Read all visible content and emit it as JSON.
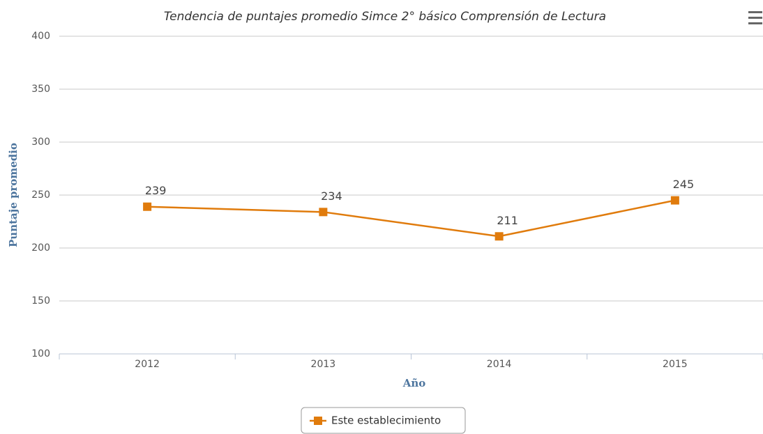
{
  "chart_data": {
    "type": "line",
    "title": "Tendencia de puntajes promedio Simce 2° básico Comprensión de Lectura",
    "y_label": "Puntaje promedio",
    "x_label": "Año",
    "categories": [
      "2012",
      "2013",
      "2014",
      "2015"
    ],
    "series": [
      {
        "name": "Este establecimiento",
        "color": "#e07b0c",
        "values": [
          239,
          234,
          211,
          245
        ]
      }
    ],
    "ylim": [
      100,
      400
    ],
    "yticks": [
      100,
      150,
      200,
      250,
      300,
      350,
      400
    ],
    "grid": true,
    "data_labels": true,
    "legend": "bottom"
  }
}
